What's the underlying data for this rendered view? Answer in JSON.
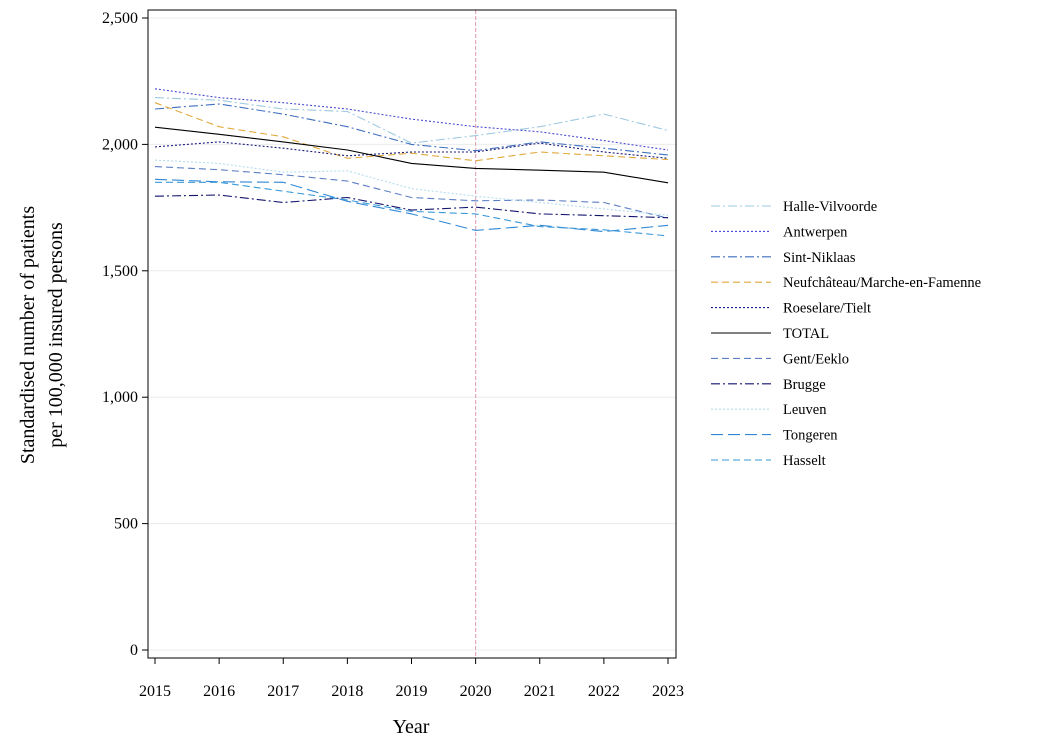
{
  "chart_data": {
    "type": "line",
    "xlabel": "Year",
    "ylabel_lines": [
      "Standardised number of patients",
      "per 100,000 insured persons"
    ],
    "x": [
      "2015",
      "2016",
      "2017",
      "2018",
      "2019",
      "2020",
      "2021",
      "2022",
      "2023"
    ],
    "ylim": [
      0,
      2500
    ],
    "y_ticks": [
      "0",
      "500",
      "1,000",
      "1,500",
      "2,000",
      "2,500"
    ],
    "y_tick_values": [
      0,
      500,
      1000,
      1500,
      2000,
      2500
    ],
    "grid": "horizontal",
    "reference_line_x": "2020",
    "legend_position": "right",
    "series": [
      {
        "name": "Halle-Vilvoorde",
        "color": "#9ecae1",
        "dash": "dashdot",
        "values": [
          2185,
          2175,
          2140,
          2130,
          2005,
          2035,
          2070,
          2120,
          2055
        ]
      },
      {
        "name": "Antwerpen",
        "color": "#4a4ad6",
        "dash": "dot",
        "values": [
          2220,
          2185,
          2165,
          2140,
          2100,
          2070,
          2050,
          2015,
          1978
        ]
      },
      {
        "name": "Sint-Niklaas",
        "color": "#3f6fbf",
        "dash": "dashdot",
        "values": [
          2140,
          2160,
          2120,
          2070,
          2000,
          1975,
          2010,
          1985,
          1958
        ]
      },
      {
        "name": "Neufchâteau/Marche-en-Famenne",
        "color": "#e0a93c",
        "dash": "dash",
        "values": [
          2165,
          2070,
          2030,
          1945,
          1965,
          1935,
          1970,
          1955,
          1940
        ]
      },
      {
        "name": "Roeselare/Tielt",
        "color": "#1a1a7a",
        "dash": "dot",
        "values": [
          1990,
          2010,
          1985,
          1955,
          1970,
          1970,
          2005,
          1970,
          1945
        ]
      },
      {
        "name": "TOTAL",
        "color": "#000000",
        "dash": "solid",
        "values": [
          2068,
          2040,
          2010,
          1978,
          1925,
          1905,
          1898,
          1890,
          1848
        ]
      },
      {
        "name": "Gent/Eeklo",
        "color": "#5b7ec4",
        "dash": "dash",
        "values": [
          1912,
          1900,
          1880,
          1855,
          1790,
          1777,
          1780,
          1770,
          1708
        ]
      },
      {
        "name": "Brugge",
        "color": "#14146e",
        "dash": "dashdot",
        "values": [
          1795,
          1800,
          1770,
          1790,
          1740,
          1752,
          1725,
          1718,
          1710
        ]
      },
      {
        "name": "Leuven",
        "color": "#b5dcef",
        "dash": "dot",
        "values": [
          1938,
          1925,
          1890,
          1895,
          1825,
          1795,
          1770,
          1745,
          1720
        ]
      },
      {
        "name": "Tongeren",
        "color": "#2f87d6",
        "dash": "longdash",
        "values": [
          1862,
          1852,
          1850,
          1775,
          1725,
          1660,
          1680,
          1655,
          1680
        ]
      },
      {
        "name": "Hasselt",
        "color": "#3a9ad8",
        "dash": "dash",
        "values": [
          1850,
          1850,
          1815,
          1780,
          1735,
          1725,
          1675,
          1662,
          1638
        ]
      }
    ]
  }
}
